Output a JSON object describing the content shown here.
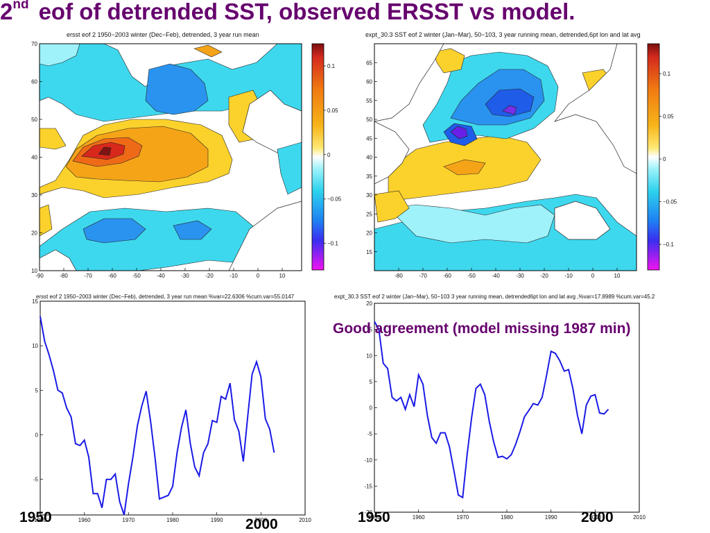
{
  "slide": {
    "title_sup": "nd",
    "title_num": "2",
    "title_rest": "eof of detrended SST, observed ERSST vs model."
  },
  "annotation": "Good agreement (model missing 1987 min)",
  "year_labels": [
    "1950",
    "2000",
    "1950",
    "2000"
  ],
  "chart_data": [
    {
      "type": "heatmap",
      "title": "ersst eof 2 1950−2003 winter (Dec−Feb), detrended, 3 year run mean",
      "x_ticks": [
        -90,
        -80,
        -70,
        -60,
        -50,
        -40,
        -30,
        -20,
        -10,
        0,
        10
      ],
      "y_ticks": [
        10,
        20,
        30,
        40,
        50,
        60,
        70
      ],
      "xlim": [
        -90,
        18
      ],
      "ylim": [
        10,
        70
      ],
      "colorbar": {
        "ticks": [
          "0.1",
          "0.05",
          "0",
          "−0.05",
          "−0.1"
        ],
        "values": [
          0.1,
          0.05,
          0,
          -0.05,
          -0.1
        ],
        "range": [
          -0.13,
          0.125
        ]
      }
    },
    {
      "type": "heatmap",
      "title": "expt_30.3 SST eof 2 winter (Jan−Mar), 50−103, 3 year running mean, detrended,6pt lon and lat avg",
      "x_ticks": [
        -80,
        -70,
        -60,
        -50,
        -40,
        -30,
        -20,
        -10,
        0,
        10
      ],
      "y_ticks": [
        15,
        20,
        25,
        30,
        35,
        40,
        45,
        50,
        55,
        60,
        65
      ],
      "xlim": [
        -90,
        18
      ],
      "ylim": [
        10,
        70
      ],
      "colorbar": {
        "ticks": [
          "0.1",
          "0.05",
          "0",
          "−0.05",
          "−0.1"
        ],
        "values": [
          0.1,
          0.05,
          0,
          -0.05,
          -0.1
        ],
        "range": [
          -0.13,
          0.135
        ]
      }
    },
    {
      "type": "line",
      "title": "ersst eof 2 1950−2003 winter (Dec−Feb), detrended, 3 year run mean %var=22.6306 %cum.var=55.0147",
      "x_ticks": [
        1950,
        1960,
        1970,
        1980,
        1990,
        2000,
        2010
      ],
      "y_ticks": [
        15,
        10,
        5,
        0,
        -5
      ],
      "xlim": [
        1950,
        2010
      ],
      "ylim": [
        -9,
        15
      ],
      "series": [
        {
          "color": "#1a1ae6",
          "x": [
            1950,
            1951,
            1952,
            1953,
            1954,
            1955,
            1956,
            1957,
            1958,
            1959,
            1960,
            1961,
            1962,
            1963,
            1964,
            1965,
            1966,
            1967,
            1968,
            1969,
            1970,
            1971,
            1972,
            1973,
            1974,
            1975,
            1976,
            1977,
            1978,
            1979,
            1980,
            1981,
            1982,
            1983,
            1984,
            1985,
            1986,
            1987,
            1988,
            1989,
            1990,
            1991,
            1992,
            1993,
            1994,
            1995,
            1996,
            1997,
            1998,
            1999,
            2000,
            2001,
            2002,
            2003
          ],
          "y": [
            13.3,
            10.5,
            9.0,
            7.2,
            5.0,
            4.7,
            3.0,
            2.0,
            -1.0,
            -1.2,
            -0.6,
            -2.5,
            -6.6,
            -6.6,
            -8.2,
            -5.0,
            -5.0,
            -4.4,
            -7.5,
            -9.0,
            -5.5,
            -2.5,
            1.0,
            3.2,
            4.9,
            1.5,
            -2.5,
            -7.2,
            -7.0,
            -6.8,
            -5.8,
            -2.0,
            0.8,
            2.8,
            -1.0,
            -3.6,
            -4.6,
            -2.0,
            -1.0,
            1.6,
            1.4,
            4.3,
            4.0,
            5.8,
            1.7,
            0.4,
            -3.0,
            2.0,
            6.8,
            8.2,
            6.5,
            1.8,
            0.6,
            -2.0
          ]
        }
      ]
    },
    {
      "type": "line",
      "title": "expt_30.3 SST eof 2 winter (Jan−Mar), 50−103 3 year running mean, detrended6pt lon and lat avg ,%var=17.8989 %cum.var=45.2",
      "x_ticks": [
        1950,
        1960,
        1970,
        1980,
        1990,
        2000,
        2010
      ],
      "y_ticks": [
        20,
        15,
        10,
        5,
        0,
        -5,
        -10,
        -15,
        -20
      ],
      "xlim": [
        1950,
        2010
      ],
      "ylim": [
        -20,
        20
      ],
      "series": [
        {
          "color": "#1a1ae6",
          "x": [
            1950,
            1951,
            1952,
            1953,
            1954,
            1955,
            1956,
            1957,
            1958,
            1959,
            1960,
            1961,
            1962,
            1963,
            1964,
            1965,
            1966,
            1967,
            1968,
            1969,
            1970,
            1971,
            1972,
            1973,
            1974,
            1975,
            1976,
            1977,
            1978,
            1979,
            1980,
            1981,
            1982,
            1983,
            1984,
            1985,
            1986,
            1987,
            1988,
            1989,
            1990,
            1991,
            1992,
            1993,
            1994,
            1995,
            1996,
            1997,
            1998,
            1999,
            2000,
            2001,
            2002,
            2003
          ],
          "y": [
            16.5,
            15.0,
            8.5,
            7.5,
            2.0,
            1.3,
            2.0,
            -0.3,
            2.5,
            0.2,
            6.3,
            4.5,
            -1.5,
            -5.7,
            -6.8,
            -4.8,
            -4.8,
            -7.5,
            -12.0,
            -16.7,
            -17.2,
            -9.0,
            -2.0,
            3.7,
            4.5,
            2.5,
            -2.5,
            -6.5,
            -9.5,
            -9.3,
            -9.8,
            -9.0,
            -7.0,
            -4.5,
            -1.7,
            -0.5,
            0.8,
            0.5,
            2.0,
            6.2,
            10.8,
            10.4,
            9.0,
            7.0,
            7.3,
            3.5,
            -1.5,
            -5.0,
            0.5,
            2.2,
            2.5,
            -1.0,
            -1.2,
            -0.3
          ]
        }
      ]
    }
  ]
}
